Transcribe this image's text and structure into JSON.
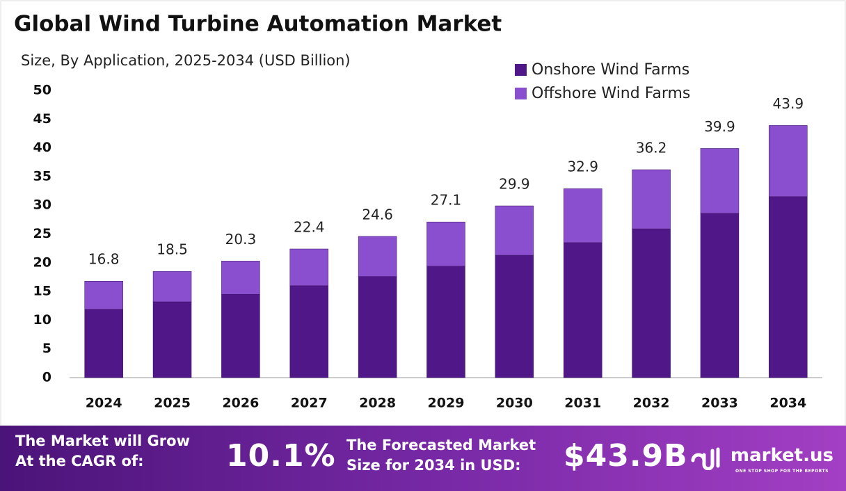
{
  "chart_data": {
    "type": "stacked_bar",
    "title": "Global Wind Turbine Automation Market",
    "subtitle": "Size, By Application, 2025-2034 (USD Billion)",
    "categories": [
      "2024",
      "2025",
      "2026",
      "2027",
      "2028",
      "2029",
      "2030",
      "2031",
      "2032",
      "2033",
      "2034"
    ],
    "series": [
      {
        "name": "Onshore Wind Farms",
        "color": "#4f1787",
        "values": [
          11.9,
          13.2,
          14.5,
          16.0,
          17.6,
          19.4,
          21.3,
          23.5,
          25.9,
          28.6,
          31.5
        ]
      },
      {
        "name": "Offshore Wind Farms",
        "color": "#8a4fcf",
        "values": [
          4.9,
          5.3,
          5.8,
          6.4,
          7.0,
          7.7,
          8.6,
          9.4,
          10.3,
          11.3,
          12.4
        ]
      }
    ],
    "totals": [
      16.8,
      18.5,
      20.3,
      22.4,
      24.6,
      27.1,
      29.9,
      32.9,
      36.2,
      39.9,
      43.9
    ],
    "ylim": [
      0,
      50
    ],
    "yticks": [
      0,
      5,
      10,
      15,
      20,
      25,
      30,
      35,
      40,
      45,
      50
    ],
    "grid": false,
    "legend": "top-right"
  },
  "footer": {
    "cagr_label": [
      "The Market will Grow",
      "At the CAGR of:"
    ],
    "cagr_value": "10.1%",
    "forecast_label": [
      "The Forecasted Market",
      "Size for 2034 in USD:"
    ],
    "forecast_value": "$43.9B",
    "brand": "market.us",
    "tagline": "ONE STOP SHOP FOR THE REPORTS"
  }
}
